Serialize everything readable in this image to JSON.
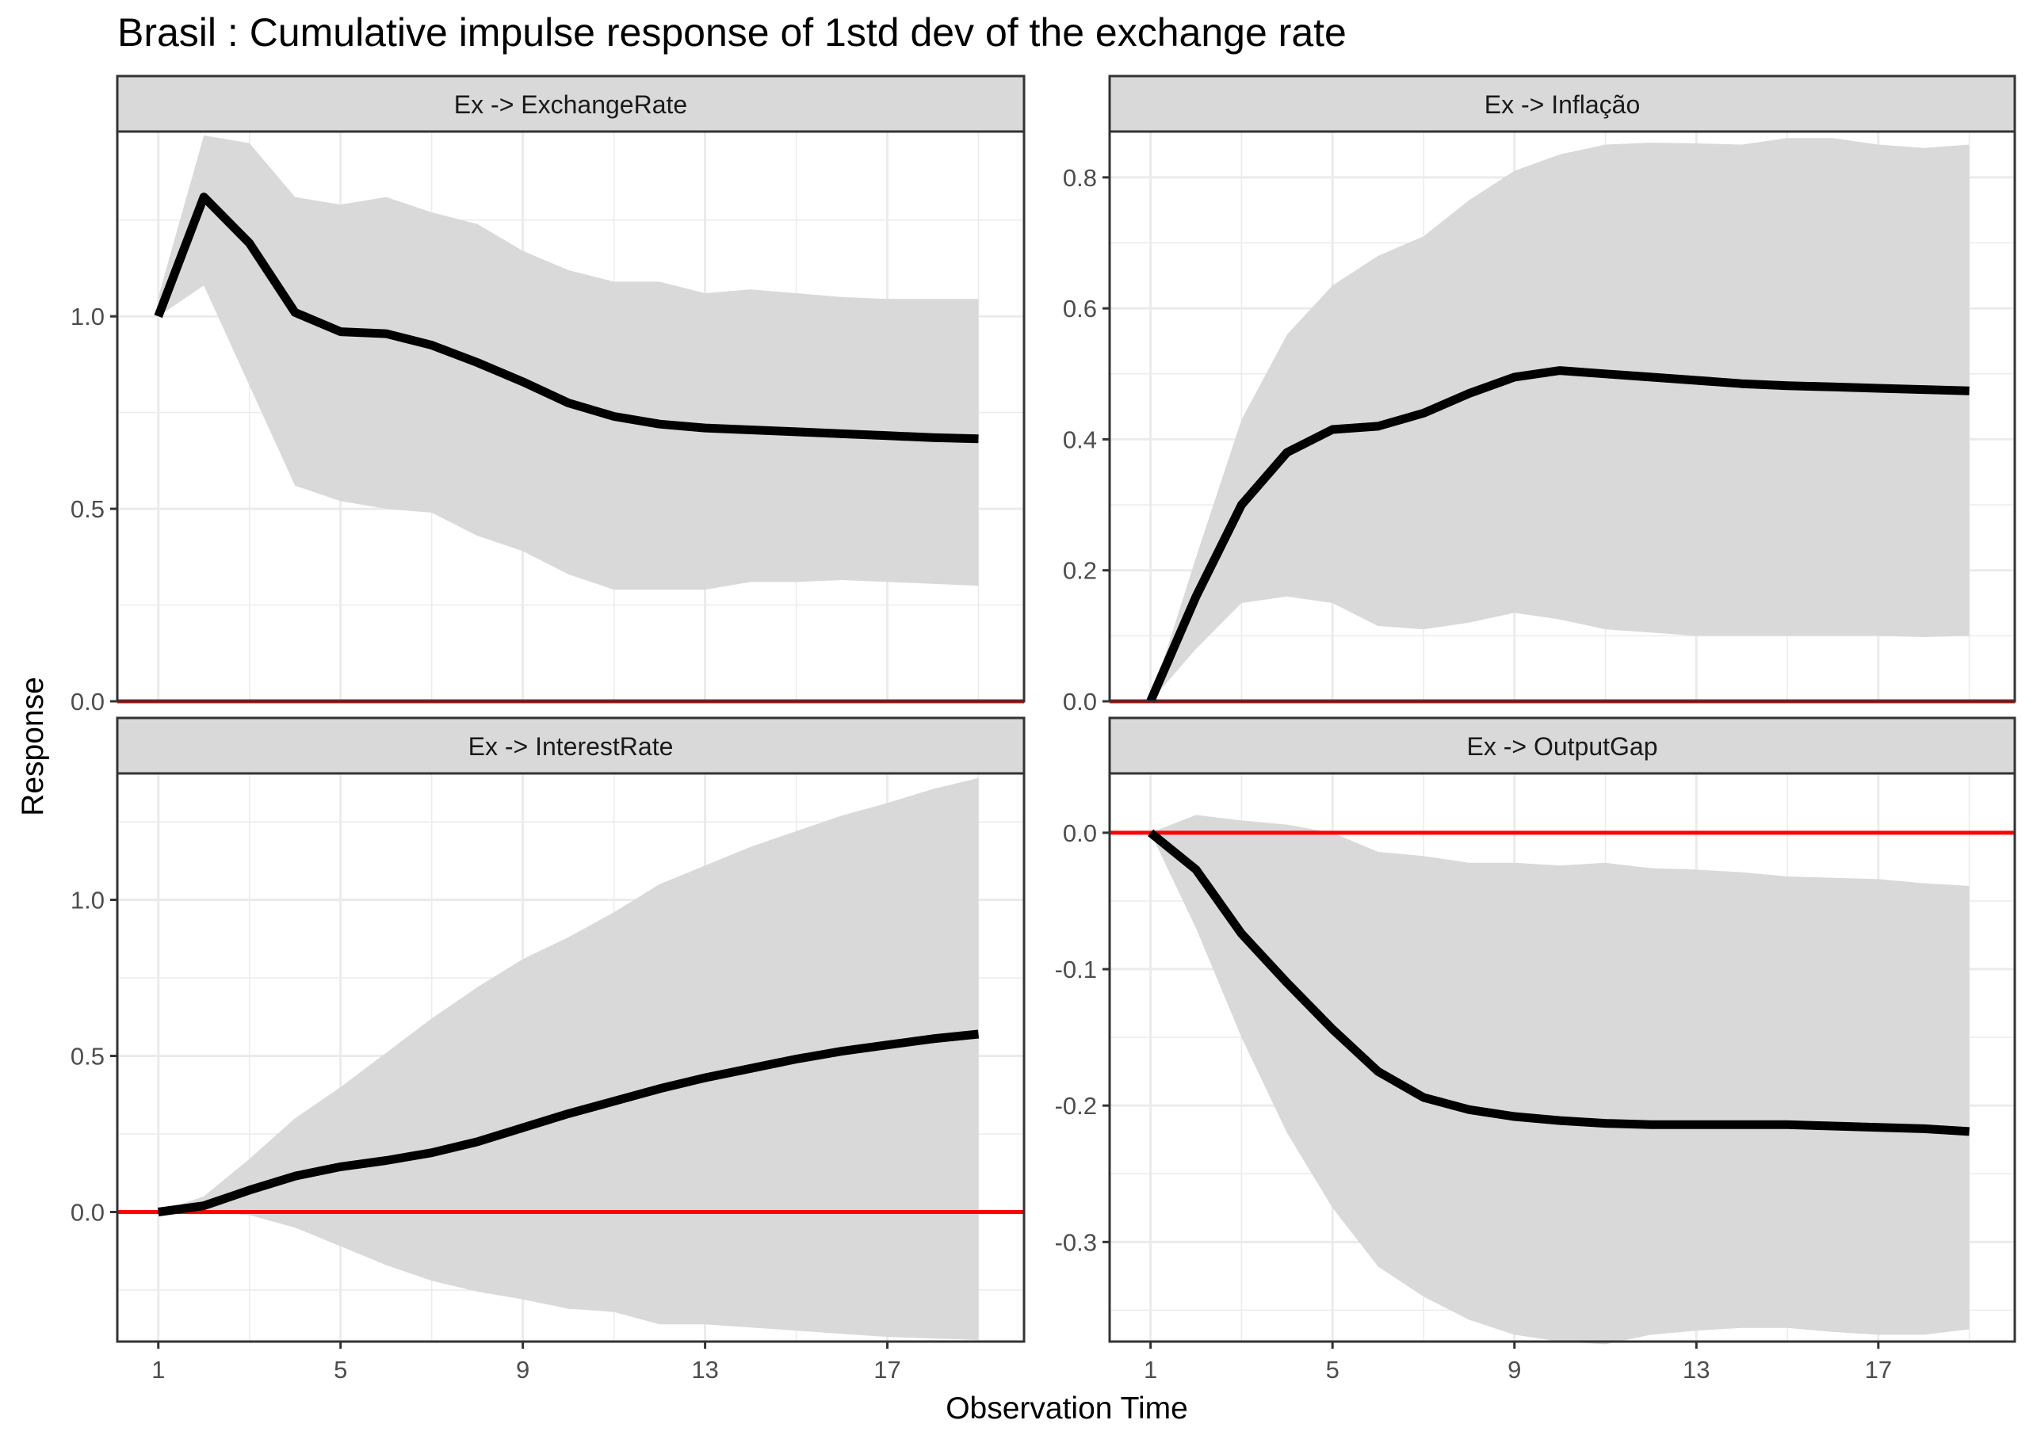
{
  "title": "Brasil : Cumulative impulse response of 1std dev of the exchange rate",
  "xlabel": "Observation Time",
  "ylabel": "Response",
  "colors": {
    "band": "#d9d9d9",
    "line": "#000000",
    "zero_line": "#ff0000",
    "strip": "#d9d9d9",
    "grid": "#ebebeb"
  },
  "chart_data": [
    {
      "type": "line",
      "title": "Ex -> ExchangeRate",
      "x": [
        1,
        2,
        3,
        4,
        5,
        6,
        7,
        8,
        9,
        10,
        11,
        12,
        13,
        14,
        15,
        16,
        17,
        18,
        19
      ],
      "series": [
        {
          "values": [
            1.0,
            1.31,
            1.19,
            1.01,
            0.96,
            0.955,
            0.925,
            0.88,
            0.83,
            0.775,
            0.74,
            0.72,
            0.71,
            0.705,
            0.7,
            0.695,
            0.69,
            0.685,
            0.682
          ]
        }
      ],
      "band_upper": [
        1.05,
        1.47,
        1.45,
        1.31,
        1.29,
        1.31,
        1.27,
        1.24,
        1.17,
        1.12,
        1.09,
        1.09,
        1.06,
        1.07,
        1.06,
        1.05,
        1.045,
        1.045,
        1.045
      ],
      "band_lower": [
        1.0,
        1.08,
        0.82,
        0.56,
        0.52,
        0.5,
        0.49,
        0.43,
        0.39,
        0.33,
        0.29,
        0.29,
        0.29,
        0.31,
        0.31,
        0.315,
        0.31,
        0.305,
        0.3
      ],
      "xlim": [
        0.1,
        20.0
      ],
      "ylim": [
        0.0,
        1.48
      ],
      "yticks": [
        0.0,
        0.5,
        1.0
      ],
      "xticks": [
        1,
        5,
        9,
        13,
        17
      ],
      "hline": 0
    },
    {
      "type": "line",
      "title": "Ex -> Inflação",
      "x": [
        1,
        2,
        3,
        4,
        5,
        6,
        7,
        8,
        9,
        10,
        11,
        12,
        13,
        14,
        15,
        16,
        17,
        18,
        19
      ],
      "series": [
        {
          "values": [
            0.0,
            0.16,
            0.3,
            0.38,
            0.415,
            0.42,
            0.44,
            0.47,
            0.495,
            0.505,
            0.5,
            0.495,
            0.49,
            0.485,
            0.482,
            0.48,
            0.478,
            0.476,
            0.474
          ]
        }
      ],
      "band_upper": [
        0.0,
        0.22,
        0.43,
        0.56,
        0.635,
        0.68,
        0.71,
        0.765,
        0.81,
        0.835,
        0.85,
        0.853,
        0.852,
        0.85,
        0.86,
        0.86,
        0.85,
        0.845,
        0.85
      ],
      "band_lower": [
        0.0,
        0.08,
        0.15,
        0.16,
        0.15,
        0.115,
        0.11,
        0.12,
        0.135,
        0.125,
        0.11,
        0.105,
        0.1,
        0.1,
        0.1,
        0.1,
        0.1,
        0.098,
        0.1
      ],
      "xlim": [
        0.1,
        20.0
      ],
      "ylim": [
        0.0,
        0.87
      ],
      "yticks": [
        0.0,
        0.2,
        0.4,
        0.6,
        0.8
      ],
      "xticks": [
        1,
        5,
        9,
        13,
        17
      ],
      "hline": 0
    },
    {
      "type": "line",
      "title": "Ex -> InterestRate",
      "x": [
        1,
        2,
        3,
        4,
        5,
        6,
        7,
        8,
        9,
        10,
        11,
        12,
        13,
        14,
        15,
        16,
        17,
        18,
        19
      ],
      "series": [
        {
          "values": [
            0.0,
            0.02,
            0.07,
            0.115,
            0.145,
            0.165,
            0.19,
            0.225,
            0.27,
            0.315,
            0.355,
            0.395,
            0.43,
            0.46,
            0.49,
            0.515,
            0.535,
            0.555,
            0.57
          ]
        }
      ],
      "band_upper": [
        0.0,
        0.05,
        0.17,
        0.3,
        0.4,
        0.51,
        0.62,
        0.72,
        0.81,
        0.88,
        0.96,
        1.05,
        1.11,
        1.17,
        1.22,
        1.27,
        1.31,
        1.355,
        1.39
      ],
      "band_lower": [
        0.0,
        0.0,
        -0.01,
        -0.05,
        -0.11,
        -0.17,
        -0.22,
        -0.255,
        -0.28,
        -0.31,
        -0.32,
        -0.36,
        -0.36,
        -0.37,
        -0.38,
        -0.39,
        -0.4,
        -0.405,
        -0.41
      ],
      "xlim": [
        0.1,
        20.0
      ],
      "ylim": [
        -0.415,
        1.405
      ],
      "yticks": [
        0.0,
        0.5,
        1.0
      ],
      "xticks": [
        1,
        5,
        9,
        13,
        17
      ],
      "hline": 0
    },
    {
      "type": "line",
      "title": "Ex -> OutputGap",
      "x": [
        1,
        2,
        3,
        4,
        5,
        6,
        7,
        8,
        9,
        10,
        11,
        12,
        13,
        14,
        15,
        16,
        17,
        18,
        19
      ],
      "series": [
        {
          "values": [
            0.0,
            -0.027,
            -0.074,
            -0.11,
            -0.144,
            -0.175,
            -0.194,
            -0.203,
            -0.208,
            -0.211,
            -0.213,
            -0.214,
            -0.214,
            -0.214,
            -0.214,
            -0.215,
            -0.216,
            -0.217,
            -0.219
          ]
        }
      ],
      "band_upper": [
        0.0,
        0.013,
        0.009,
        0.006,
        0.0,
        -0.014,
        -0.017,
        -0.022,
        -0.022,
        -0.024,
        -0.022,
        -0.026,
        -0.027,
        -0.029,
        -0.032,
        -0.033,
        -0.034,
        -0.037,
        -0.039
      ],
      "band_lower": [
        0.0,
        -0.07,
        -0.15,
        -0.22,
        -0.275,
        -0.318,
        -0.34,
        -0.357,
        -0.368,
        -0.373,
        -0.375,
        -0.368,
        -0.365,
        -0.363,
        -0.363,
        -0.366,
        -0.368,
        -0.368,
        -0.364
      ],
      "xlim": [
        0.1,
        20.0
      ],
      "ylim": [
        -0.373,
        0.0435
      ],
      "yticks": [
        -0.3,
        -0.2,
        -0.1,
        0.0
      ],
      "ytick_labels": [
        "-0.3",
        "-0.2",
        "-0.1",
        "0.0"
      ],
      "xticks": [
        1,
        5,
        9,
        13,
        17
      ],
      "hline": 0
    }
  ]
}
